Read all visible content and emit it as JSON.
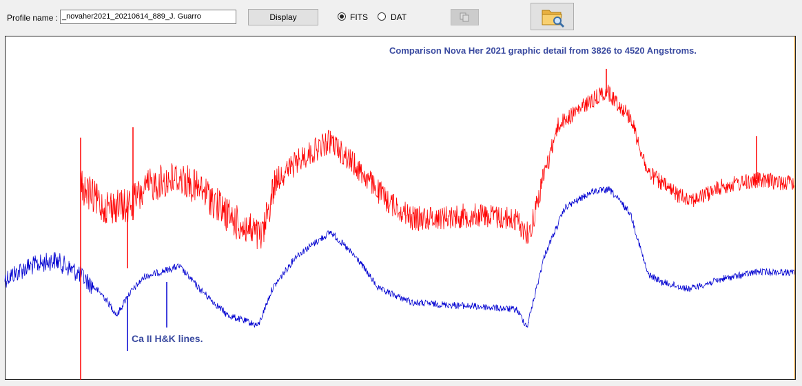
{
  "toolbar": {
    "profile_label": "Profile name :",
    "profile_value": "_novaher2021_20210614_889_J. Guarro",
    "display_button": "Display",
    "format_options": [
      "FITS",
      "DAT"
    ]
  },
  "plot": {
    "title": "Comparison Nova Her 2021 graphic detail from 3826 to 4520 Angstroms.",
    "annotation": "Ca II H&K lines."
  }
}
